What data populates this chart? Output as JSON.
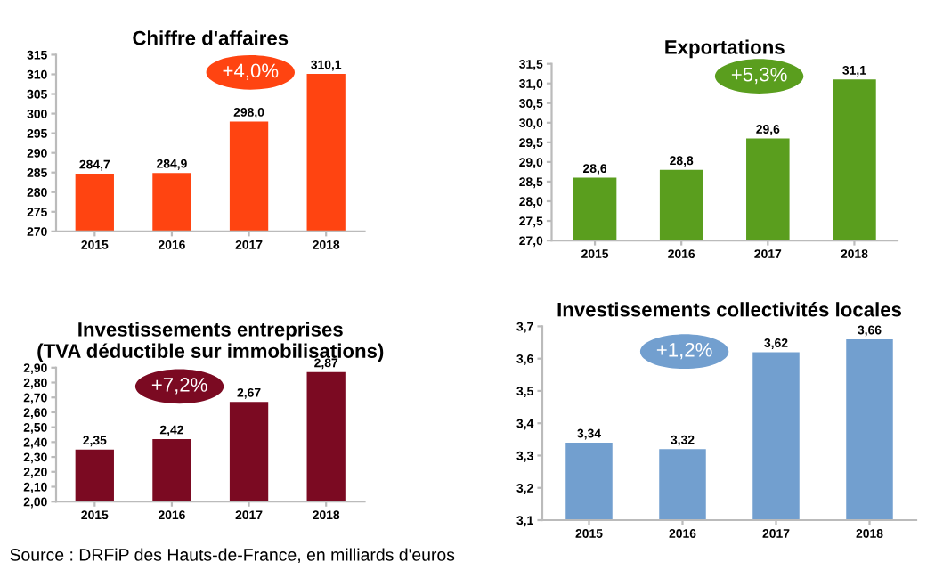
{
  "chart_data": [
    {
      "type": "bar",
      "title": "Chiffre d'affaires",
      "categories": [
        "2015",
        "2016",
        "2017",
        "2018"
      ],
      "values": [
        284.7,
        284.9,
        298.0,
        310.1
      ],
      "value_labels": [
        "284,7",
        "284,9",
        "298,0",
        "310,1"
      ],
      "color": "#ff4411",
      "ylim": [
        270,
        315
      ],
      "yticks": [
        270,
        275,
        280,
        285,
        290,
        295,
        300,
        305,
        310,
        315
      ],
      "annotations": [
        "+4,0%"
      ],
      "grid": false,
      "legend": false
    },
    {
      "type": "bar",
      "title": "Exportations",
      "categories": [
        "2015",
        "2016",
        "2017",
        "2018"
      ],
      "values": [
        28.6,
        28.8,
        29.6,
        31.1
      ],
      "value_labels": [
        "28,6",
        "28,8",
        "29,6",
        "31,1"
      ],
      "color": "#5a9e1e",
      "ylim": [
        27.0,
        31.5
      ],
      "yticks": [
        {
          "value": 27.0,
          "label": "27,0"
        },
        {
          "value": 27.5,
          "label": "27,5"
        },
        {
          "value": 28.0,
          "label": "28,0"
        },
        {
          "value": 28.5,
          "label": "28,5"
        },
        {
          "value": 29.0,
          "label": "29,0"
        },
        {
          "value": 29.5,
          "label": "29,5"
        },
        {
          "value": 30.0,
          "label": "30,0"
        },
        {
          "value": 30.5,
          "label": "30,5"
        },
        {
          "value": 31.0,
          "label": "31,0"
        },
        {
          "value": 31.5,
          "label": "31,5"
        }
      ],
      "annotations": [
        "+5,3%"
      ],
      "grid": false,
      "legend": false
    },
    {
      "type": "bar",
      "title": "Investissements entreprises\n(TVA déductible sur immobilisations)",
      "categories": [
        "2015",
        "2016",
        "2017",
        "2018"
      ],
      "values": [
        2.35,
        2.42,
        2.67,
        2.87
      ],
      "value_labels": [
        "2,35",
        "2,42",
        "2,67",
        "2,87"
      ],
      "color": "#7b0a22",
      "ylim": [
        2.0,
        2.9
      ],
      "yticks": [
        {
          "value": 2.0,
          "label": "2,00"
        },
        {
          "value": 2.1,
          "label": "2,10"
        },
        {
          "value": 2.2,
          "label": "2,20"
        },
        {
          "value": 2.3,
          "label": "2,30"
        },
        {
          "value": 2.4,
          "label": "2,40"
        },
        {
          "value": 2.5,
          "label": "2,50"
        },
        {
          "value": 2.6,
          "label": "2,60"
        },
        {
          "value": 2.7,
          "label": "2,70"
        },
        {
          "value": 2.8,
          "label": "2,80"
        },
        {
          "value": 2.9,
          "label": "2,90"
        }
      ],
      "annotations": [
        "+7,2%",
        "Source : DRFiP des Hauts-de-France, en milliards d'euros"
      ],
      "grid": false,
      "legend": false
    },
    {
      "type": "bar",
      "title": "Investissements collectivités locales",
      "categories": [
        "2015",
        "2016",
        "2017",
        "2018"
      ],
      "values": [
        3.34,
        3.32,
        3.62,
        3.66
      ],
      "value_labels": [
        "3,34",
        "3,32",
        "3,62",
        "3,66"
      ],
      "color": "#729fcf",
      "ylim": [
        3.1,
        3.7
      ],
      "yticks": [
        {
          "value": 3.1,
          "label": "3,1"
        },
        {
          "value": 3.2,
          "label": "3,2"
        },
        {
          "value": 3.3,
          "label": "3,3"
        },
        {
          "value": 3.4,
          "label": "3,4"
        },
        {
          "value": 3.5,
          "label": "3,5"
        },
        {
          "value": 3.6,
          "label": "3,6"
        },
        {
          "value": 3.7,
          "label": "3,7"
        }
      ],
      "annotations": [
        "+1,2%"
      ],
      "grid": false,
      "legend": false
    }
  ]
}
